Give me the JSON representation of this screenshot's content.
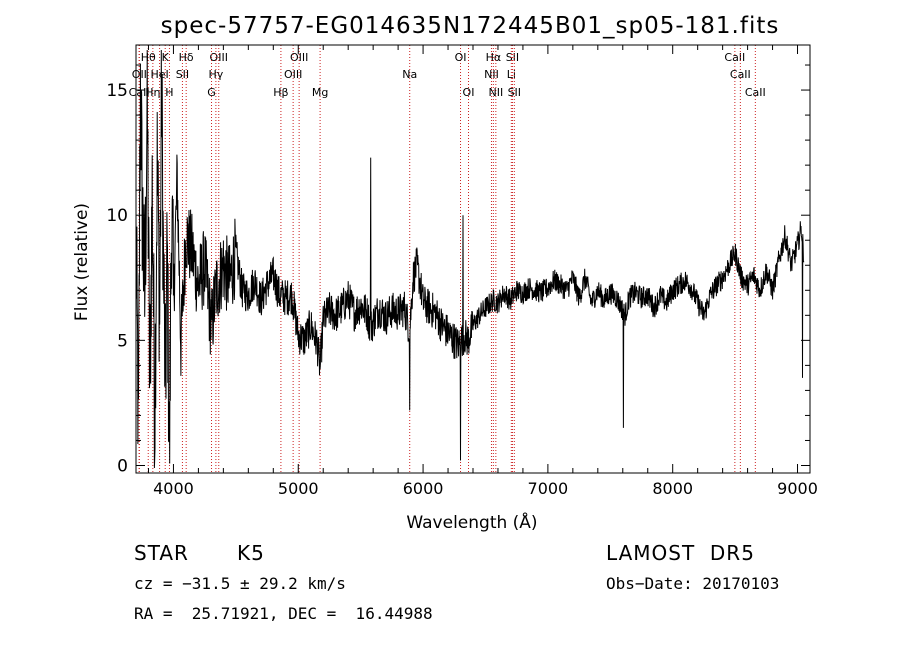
{
  "chart_data": {
    "type": "line",
    "title": "spec-57757-EG014635N172445B01_sp05-181.fits",
    "xlabel": "Wavelength (Å)",
    "ylabel": "Flux (relative)",
    "xlim": [
      3700,
      9100
    ],
    "ylim": [
      -0.3,
      16.8
    ],
    "xticks": [
      4000,
      5000,
      6000,
      7000,
      8000,
      9000
    ],
    "yticks": [
      0,
      5,
      10,
      15
    ],
    "grid": false,
    "line_color": "#000000",
    "marker_color": "#cc2222",
    "line_markers": [
      {
        "label": "Hθ",
        "x": 3798,
        "row": 0
      },
      {
        "label": "OII",
        "x": 3727,
        "row": 1
      },
      {
        "label": "CaII",
        "x": 3725,
        "row": 2
      },
      {
        "label": "Hη",
        "x": 3835,
        "row": 2
      },
      {
        "label": "K",
        "x": 3934,
        "row": 0
      },
      {
        "label": "HeI",
        "x": 3889,
        "row": 1
      },
      {
        "label": "H",
        "x": 3968,
        "row": 2
      },
      {
        "label": "Hδ",
        "x": 4102,
        "row": 0
      },
      {
        "label": "SII",
        "x": 4072,
        "row": 1
      },
      {
        "label": "OIII",
        "x": 4363,
        "row": 0
      },
      {
        "label": "Hγ",
        "x": 4340,
        "row": 1
      },
      {
        "label": "G",
        "x": 4305,
        "row": 2
      },
      {
        "label": "OIII",
        "x": 5007,
        "row": 0
      },
      {
        "label": "OIII",
        "x": 4959,
        "row": 1
      },
      {
        "label": "Hβ",
        "x": 4861,
        "row": 2
      },
      {
        "label": "Mg",
        "x": 5175,
        "row": 2
      },
      {
        "label": "Na",
        "x": 5893,
        "row": 1
      },
      {
        "label": "OI",
        "x": 6300,
        "row": 0
      },
      {
        "label": "OI",
        "x": 6364,
        "row": 2
      },
      {
        "label": "Hα",
        "x": 6563,
        "row": 0
      },
      {
        "label": "NII",
        "x": 6548,
        "row": 1
      },
      {
        "label": "NII",
        "x": 6583,
        "row": 2
      },
      {
        "label": "SII",
        "x": 6716,
        "row": 0
      },
      {
        "label": "Li",
        "x": 6707,
        "row": 1
      },
      {
        "label": "SII",
        "x": 6731,
        "row": 2
      },
      {
        "label": "CaII",
        "x": 8498,
        "row": 0
      },
      {
        "label": "CaII",
        "x": 8542,
        "row": 1
      },
      {
        "label": "CaII",
        "x": 8662,
        "row": 2
      }
    ],
    "anchors": [
      [
        3700,
        9.0
      ],
      [
        3720,
        1.2
      ],
      [
        3735,
        15.5
      ],
      [
        3750,
        10.5
      ],
      [
        3770,
        6.5
      ],
      [
        3790,
        14.5
      ],
      [
        3810,
        3.0
      ],
      [
        3830,
        11.0
      ],
      [
        3850,
        2.0
      ],
      [
        3870,
        12.0
      ],
      [
        3890,
        6.0
      ],
      [
        3905,
        15.2
      ],
      [
        3920,
        8.0
      ],
      [
        3935,
        3.0
      ],
      [
        3950,
        8.5
      ],
      [
        3968,
        0.2
      ],
      [
        3985,
        10.5
      ],
      [
        4000,
        6.5
      ],
      [
        4030,
        11.5
      ],
      [
        4060,
        4.8
      ],
      [
        4100,
        9.2
      ],
      [
        4150,
        8.5
      ],
      [
        4200,
        7.2
      ],
      [
        4250,
        8.0
      ],
      [
        4305,
        5.5
      ],
      [
        4340,
        7.0
      ],
      [
        4400,
        8.0
      ],
      [
        4450,
        7.3
      ],
      [
        4500,
        8.5
      ],
      [
        4550,
        7.0
      ],
      [
        4600,
        6.8
      ],
      [
        4650,
        7.4
      ],
      [
        4700,
        6.6
      ],
      [
        4750,
        7.2
      ],
      [
        4800,
        7.6
      ],
      [
        4850,
        6.8
      ],
      [
        4900,
        6.7
      ],
      [
        4950,
        6.8
      ],
      [
        5000,
        5.2
      ],
      [
        5050,
        5.0
      ],
      [
        5100,
        5.6
      ],
      [
        5150,
        4.9
      ],
      [
        5175,
        3.9
      ],
      [
        5200,
        5.8
      ],
      [
        5250,
        6.2
      ],
      [
        5300,
        6.0
      ],
      [
        5350,
        6.3
      ],
      [
        5400,
        6.7
      ],
      [
        5450,
        6.1
      ],
      [
        5500,
        6.4
      ],
      [
        5550,
        6.1
      ],
      [
        5580,
        5.5
      ],
      [
        5650,
        6.3
      ],
      [
        5700,
        5.9
      ],
      [
        5750,
        6.2
      ],
      [
        5800,
        6.1
      ],
      [
        5850,
        6.3
      ],
      [
        5893,
        5.4
      ],
      [
        5920,
        7.5
      ],
      [
        5950,
        8.0
      ],
      [
        5980,
        7.2
      ],
      [
        6000,
        6.5
      ],
      [
        6050,
        6.3
      ],
      [
        6100,
        6.1
      ],
      [
        6150,
        5.6
      ],
      [
        6200,
        5.3
      ],
      [
        6250,
        5.0
      ],
      [
        6280,
        4.8
      ],
      [
        6330,
        5.2
      ],
      [
        6360,
        5.0
      ],
      [
        6400,
        5.6
      ],
      [
        6450,
        6.0
      ],
      [
        6500,
        6.3
      ],
      [
        6563,
        6.6
      ],
      [
        6600,
        6.5
      ],
      [
        6650,
        6.9
      ],
      [
        6700,
        6.6
      ],
      [
        6750,
        7.0
      ],
      [
        6800,
        6.9
      ],
      [
        6850,
        7.1
      ],
      [
        6900,
        7.0
      ],
      [
        6950,
        6.9
      ],
      [
        7000,
        7.1
      ],
      [
        7050,
        7.4
      ],
      [
        7100,
        7.2
      ],
      [
        7150,
        7.0
      ],
      [
        7200,
        7.5
      ],
      [
        7250,
        6.7
      ],
      [
        7300,
        7.5
      ],
      [
        7350,
        6.5
      ],
      [
        7400,
        7.0
      ],
      [
        7450,
        6.6
      ],
      [
        7500,
        6.9
      ],
      [
        7550,
        6.7
      ],
      [
        7620,
        6.0
      ],
      [
        7650,
        6.7
      ],
      [
        7700,
        6.9
      ],
      [
        7750,
        6.7
      ],
      [
        7800,
        6.8
      ],
      [
        7850,
        6.3
      ],
      [
        7900,
        6.8
      ],
      [
        7950,
        6.5
      ],
      [
        8000,
        7.0
      ],
      [
        8050,
        7.2
      ],
      [
        8100,
        7.4
      ],
      [
        8150,
        7.1
      ],
      [
        8200,
        6.5
      ],
      [
        8250,
        6.0
      ],
      [
        8300,
        6.8
      ],
      [
        8350,
        7.2
      ],
      [
        8400,
        7.5
      ],
      [
        8450,
        8.0
      ],
      [
        8500,
        8.5
      ],
      [
        8550,
        7.5
      ],
      [
        8600,
        7.2
      ],
      [
        8650,
        7.6
      ],
      [
        8700,
        7.0
      ],
      [
        8750,
        7.8
      ],
      [
        8800,
        7.0
      ],
      [
        8850,
        8.2
      ],
      [
        8900,
        9.2
      ],
      [
        8950,
        8.0
      ],
      [
        9000,
        8.8
      ],
      [
        9030,
        9.5
      ],
      [
        9050,
        8.5
      ]
    ],
    "spikes": [
      [
        5580,
        12.3
      ],
      [
        5893,
        2.2
      ],
      [
        6300,
        0.2
      ],
      [
        6320,
        10.0
      ],
      [
        7605,
        1.5
      ],
      [
        9040,
        3.5
      ]
    ]
  },
  "footer": {
    "object_class": "STAR",
    "subclass": "K5",
    "release": "LAMOST  DR5",
    "velocity": "cz = −31.5 ± 29.2 km/s",
    "obs_date": "Obs−Date: 20170103",
    "coords": "RA =  25.71921, DEC =  16.44988"
  }
}
